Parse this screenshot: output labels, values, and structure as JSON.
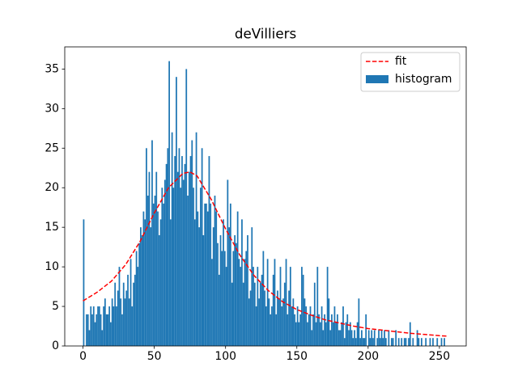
{
  "chart_data": {
    "type": "histogram",
    "title": "deVilliers",
    "bins": [
      0,
      1,
      2,
      3,
      4,
      5,
      6,
      7,
      8,
      9,
      10,
      11,
      12,
      13,
      14,
      15,
      16,
      17,
      18,
      19,
      20,
      21,
      22,
      23,
      24,
      25,
      26,
      27,
      28,
      29,
      30,
      31,
      32,
      33,
      34,
      35,
      36,
      37,
      38,
      39,
      40,
      41,
      42,
      43,
      44,
      45,
      46,
      47,
      48,
      49,
      50,
      51,
      52,
      53,
      54,
      55,
      56,
      57,
      58,
      59,
      60,
      61,
      62,
      63,
      64,
      65,
      66,
      67,
      68,
      69,
      70,
      71,
      72,
      73,
      74,
      75,
      76,
      77,
      78,
      79,
      80,
      81,
      82,
      83,
      84,
      85,
      86,
      87,
      88,
      89,
      90,
      91,
      92,
      93,
      94,
      95,
      96,
      97,
      98,
      99,
      100,
      101,
      102,
      103,
      104,
      105,
      106,
      107,
      108,
      109,
      110,
      111,
      112,
      113,
      114,
      115,
      116,
      117,
      118,
      119,
      120,
      121,
      122,
      123,
      124,
      125,
      126,
      127,
      128,
      129,
      130,
      131,
      132,
      133,
      134,
      135,
      136,
      137,
      138,
      139,
      140,
      141,
      142,
      143,
      144,
      145,
      146,
      147,
      148,
      149,
      150,
      151,
      152,
      153,
      154,
      155,
      156,
      157,
      158,
      159,
      160,
      161,
      162,
      163,
      164,
      165,
      166,
      167,
      168,
      169,
      170,
      171,
      172,
      173,
      174,
      175,
      176,
      177,
      178,
      179,
      180,
      181,
      182,
      183,
      184,
      185,
      186,
      187,
      188,
      189,
      190,
      191,
      192,
      193,
      194,
      195,
      196,
      197,
      198,
      199,
      200,
      201,
      202,
      203,
      204,
      205,
      206,
      207,
      208,
      209,
      210,
      211,
      212,
      213,
      214,
      215,
      216,
      217,
      218,
      219,
      220,
      221,
      222,
      223,
      224,
      225,
      226,
      227,
      228,
      229,
      230,
      231,
      232,
      233,
      234,
      235,
      236,
      237,
      238,
      239,
      240,
      241,
      242,
      243,
      244,
      245,
      246,
      247,
      248,
      249,
      250,
      251,
      252,
      253,
      254,
      255,
      256
    ],
    "series": [
      {
        "name": "fit",
        "type": "line",
        "color": "#ff0000",
        "x": [
          0,
          10,
          20,
          30,
          40,
          50,
          60,
          70,
          75,
          80,
          90,
          100,
          110,
          120,
          130,
          140,
          150,
          160,
          170,
          180,
          190,
          200,
          210,
          220,
          230,
          240,
          250,
          255
        ],
        "values": [
          5.7,
          6.8,
          8.2,
          10.3,
          13.2,
          16.8,
          20.0,
          21.8,
          22.0,
          21.5,
          18.5,
          14.8,
          11.5,
          8.9,
          7.0,
          5.6,
          4.6,
          3.9,
          3.3,
          2.9,
          2.5,
          2.2,
          2.0,
          1.8,
          1.6,
          1.45,
          1.3,
          1.25
        ]
      },
      {
        "name": "histogram",
        "type": "histogram",
        "color": "#1f77b4",
        "values": [
          16,
          0,
          4,
          4,
          2,
          5,
          4,
          5,
          3,
          4,
          5,
          5,
          4,
          2,
          5,
          6,
          4,
          4,
          5,
          3,
          6,
          5,
          8,
          5,
          7,
          10,
          6,
          4,
          8,
          6,
          7,
          9,
          6,
          11,
          5,
          8,
          9,
          12,
          10,
          13,
          15,
          14,
          17,
          16,
          25,
          19,
          22,
          15,
          26,
          18,
          19,
          22,
          17,
          14,
          16,
          20,
          18,
          21,
          23,
          25,
          36,
          16,
          27,
          20,
          24,
          34,
          22,
          25,
          20,
          24,
          21,
          23,
          35,
          19,
          22,
          24,
          26,
          20,
          16,
          27,
          17,
          15,
          20,
          25,
          14,
          18,
          18,
          17,
          24,
          18,
          11,
          15,
          19,
          17,
          13,
          9,
          14,
          12,
          16,
          12,
          10,
          21,
          15,
          18,
          8,
          12,
          14,
          13,
          17,
          11,
          10,
          16,
          8,
          11,
          12,
          14,
          6,
          7,
          15,
          10,
          8,
          5,
          10,
          6,
          8,
          9,
          12,
          7,
          5,
          11,
          6,
          4,
          5,
          9,
          11,
          4,
          7,
          6,
          10,
          5,
          6,
          8,
          11,
          4,
          7,
          10,
          5,
          6,
          4,
          3,
          5,
          3,
          4,
          10,
          9,
          6,
          5,
          3,
          4,
          5,
          2,
          4,
          8,
          3,
          10,
          4,
          3,
          5,
          2,
          4,
          3,
          10,
          6,
          2,
          4,
          3,
          5,
          3,
          4,
          2,
          2,
          3,
          5,
          1,
          3,
          4,
          2,
          3,
          2,
          1,
          2,
          1,
          3,
          6,
          1,
          2,
          1,
          1,
          4,
          0,
          2,
          1,
          2,
          1,
          2,
          0,
          1,
          2,
          1,
          2,
          1,
          2,
          1,
          0,
          2,
          0,
          1,
          1,
          0,
          2,
          0,
          1,
          0,
          1,
          0,
          1,
          1,
          0,
          1,
          3,
          0,
          1,
          0,
          0,
          2,
          1,
          0,
          1,
          0,
          0,
          1,
          0,
          0,
          1,
          0,
          1,
          0,
          0,
          1,
          0,
          0,
          1,
          0,
          1,
          0,
          0
        ]
      }
    ],
    "xlim": [
      -12.8,
      268.8
    ],
    "xticks": [
      0,
      50,
      100,
      150,
      200,
      250
    ],
    "ylim": [
      0,
      37.8
    ],
    "yticks": [
      0,
      5,
      10,
      15,
      20,
      25,
      30,
      35
    ],
    "legend": "upper right"
  }
}
